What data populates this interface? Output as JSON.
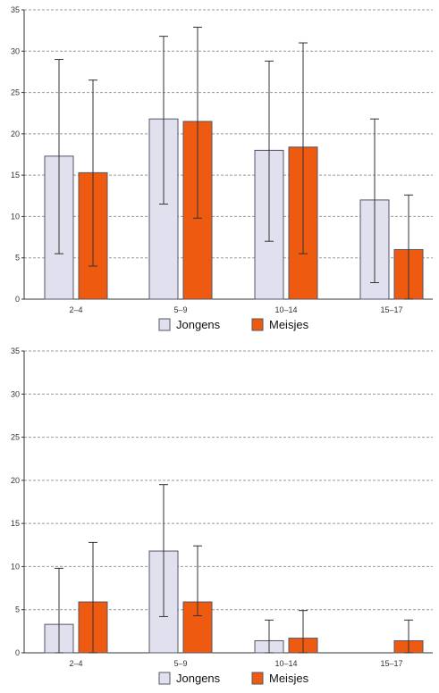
{
  "colors": {
    "jongens": "#e0e0ef",
    "meisjes": "#ee5a10",
    "bar_stroke": "#555566",
    "grid": "#9a9a9a",
    "axis": "#333333",
    "error": "#333333"
  },
  "chart_data": [
    {
      "type": "bar",
      "categories": [
        "2–4",
        "5–9",
        "10–14",
        "15–17"
      ],
      "series": [
        {
          "name": "Jongens",
          "values": [
            17.3,
            21.8,
            18.0,
            12.0
          ],
          "err_low": [
            5.5,
            11.5,
            7.0,
            2.0
          ],
          "err_high": [
            29.0,
            31.8,
            28.8,
            21.8
          ]
        },
        {
          "name": "Meisjes",
          "values": [
            15.3,
            21.5,
            18.4,
            6.0
          ],
          "err_low": [
            4.0,
            9.8,
            5.5,
            0.0
          ],
          "err_high": [
            26.5,
            32.9,
            31.0,
            12.6
          ]
        }
      ],
      "ylim": [
        0,
        35
      ],
      "yticks": [
        0,
        5,
        10,
        15,
        20,
        25,
        30,
        35
      ],
      "grid": true,
      "legend": "bottom"
    },
    {
      "type": "bar",
      "categories": [
        "2–4",
        "5–9",
        "10–14",
        "15–17"
      ],
      "series": [
        {
          "name": "Jongens",
          "values": [
            3.3,
            11.8,
            1.4,
            0.0
          ],
          "err_low": [
            0.0,
            4.2,
            0.0,
            0.0
          ],
          "err_high": [
            9.8,
            19.5,
            3.8,
            0.0
          ]
        },
        {
          "name": "Meisjes",
          "values": [
            5.9,
            5.9,
            1.7,
            1.4
          ],
          "err_low": [
            0.0,
            4.3,
            0.0,
            0.0
          ],
          "err_high": [
            12.8,
            12.4,
            4.9,
            3.8
          ]
        }
      ],
      "ylim": [
        0,
        35
      ],
      "yticks": [
        0,
        5,
        10,
        15,
        20,
        25,
        30,
        35
      ],
      "grid": true,
      "legend": "bottom"
    }
  ]
}
